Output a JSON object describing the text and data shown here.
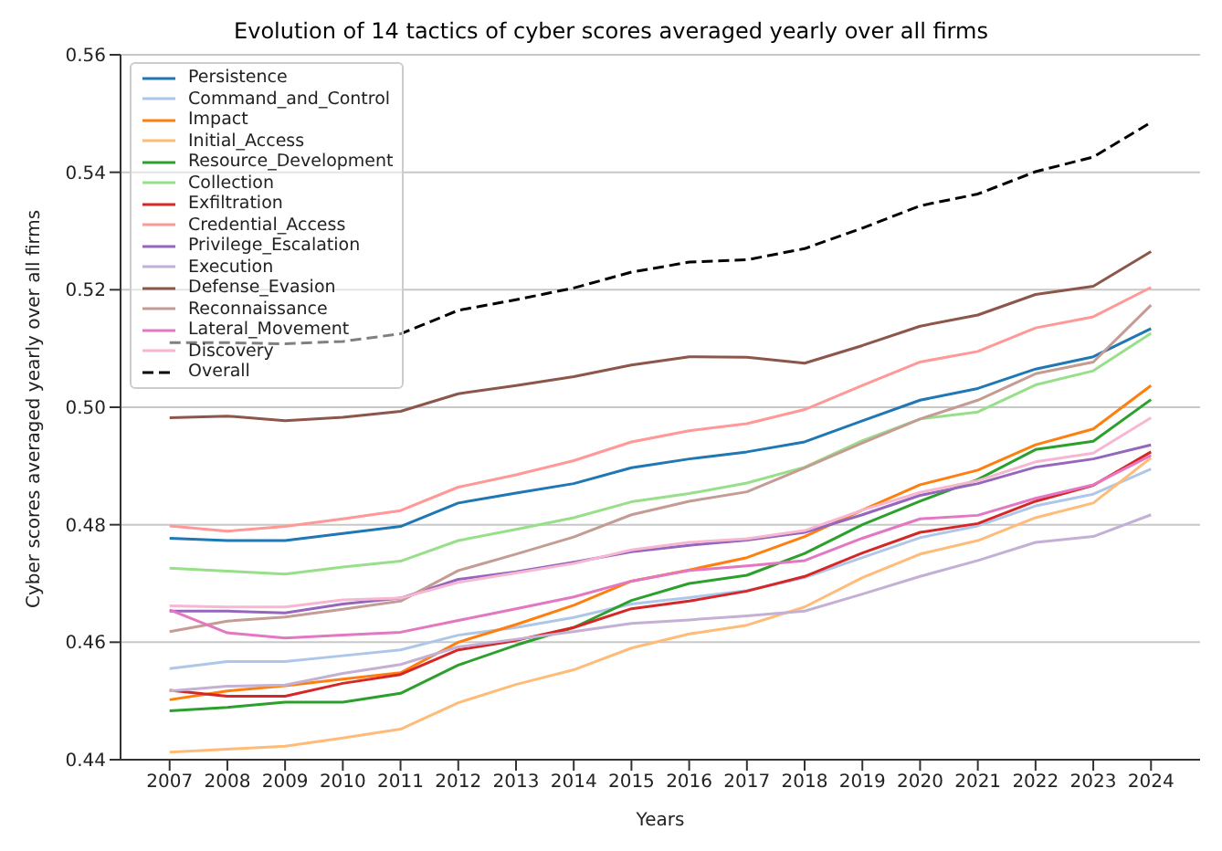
{
  "chart_data": {
    "type": "line",
    "title": "Evolution of 14 tactics of cyber scores averaged yearly over all firms",
    "xlabel": "Years",
    "ylabel": "Cyber scores averaged yearly over all firms",
    "x": [
      2007,
      2008,
      2009,
      2010,
      2011,
      2012,
      2013,
      2014,
      2015,
      2016,
      2017,
      2018,
      2019,
      2020,
      2021,
      2022,
      2023,
      2024
    ],
    "xlim": [
      2006.15,
      2024.85
    ],
    "xticks": [
      2007,
      2008,
      2009,
      2010,
      2011,
      2012,
      2013,
      2014,
      2015,
      2016,
      2017,
      2018,
      2019,
      2020,
      2021,
      2022,
      2023,
      2024
    ],
    "ylim": [
      0.44,
      0.56
    ],
    "yticks": [
      {
        "value": 0.44,
        "label": "0.44"
      },
      {
        "value": 0.46,
        "label": "0.46"
      },
      {
        "value": 0.48,
        "label": "0.48"
      },
      {
        "value": 0.5,
        "label": "0.50"
      },
      {
        "value": 0.52,
        "label": "0.52"
      },
      {
        "value": 0.54,
        "label": "0.54"
      },
      {
        "value": 0.56,
        "label": "0.56"
      }
    ],
    "grid": "y",
    "legend": "top left",
    "marker": "none",
    "series": [
      {
        "name": "Persistence",
        "color": "#1f77b4",
        "values": [
          0.4777,
          0.4773,
          0.4773,
          0.4785,
          0.4797,
          0.4837,
          0.4854,
          0.487,
          0.4897,
          0.4912,
          0.4924,
          0.4941,
          0.4977,
          0.5012,
          0.5032,
          0.5065,
          0.5086,
          0.5134
        ]
      },
      {
        "name": "Command_and_Control",
        "color": "#aec7e8",
        "values": [
          0.4555,
          0.4567,
          0.4567,
          0.4577,
          0.4587,
          0.4612,
          0.4625,
          0.4642,
          0.4665,
          0.4676,
          0.4688,
          0.471,
          0.4744,
          0.4778,
          0.4798,
          0.4832,
          0.4852,
          0.4895
        ]
      },
      {
        "name": "Impact",
        "color": "#ff7f0e",
        "values": [
          0.4502,
          0.4517,
          0.4526,
          0.4537,
          0.4548,
          0.46,
          0.463,
          0.4663,
          0.4704,
          0.4723,
          0.4744,
          0.478,
          0.4825,
          0.4868,
          0.4893,
          0.4936,
          0.4963,
          0.5037
        ]
      },
      {
        "name": "Initial_Access",
        "color": "#ffbb78",
        "values": [
          0.4413,
          0.4418,
          0.4423,
          0.4437,
          0.4452,
          0.4497,
          0.4528,
          0.4553,
          0.459,
          0.4614,
          0.4629,
          0.466,
          0.471,
          0.475,
          0.4773,
          0.4812,
          0.4837,
          0.4914
        ]
      },
      {
        "name": "Resource_Development",
        "color": "#2ca02c",
        "values": [
          0.4483,
          0.4489,
          0.4498,
          0.4498,
          0.4513,
          0.4561,
          0.4595,
          0.4625,
          0.4671,
          0.47,
          0.4714,
          0.4751,
          0.48,
          0.484,
          0.4877,
          0.4928,
          0.4942,
          0.5013
        ]
      },
      {
        "name": "Collection",
        "color": "#98df8a",
        "values": [
          0.4726,
          0.4721,
          0.4716,
          0.4728,
          0.4738,
          0.4773,
          0.4792,
          0.4812,
          0.4839,
          0.4853,
          0.4871,
          0.4898,
          0.4943,
          0.498,
          0.4992,
          0.5038,
          0.5062,
          0.5126
        ]
      },
      {
        "name": "Exfiltration",
        "color": "#d62728",
        "values": [
          0.4518,
          0.4508,
          0.4508,
          0.453,
          0.4545,
          0.4587,
          0.4603,
          0.4625,
          0.4657,
          0.467,
          0.4687,
          0.4712,
          0.4752,
          0.4787,
          0.4802,
          0.484,
          0.4867,
          0.4924
        ]
      },
      {
        "name": "Credential_Access",
        "color": "#ff9896",
        "values": [
          0.4798,
          0.4789,
          0.4797,
          0.481,
          0.4824,
          0.4864,
          0.4885,
          0.4909,
          0.4941,
          0.496,
          0.4972,
          0.4996,
          0.5037,
          0.5077,
          0.5095,
          0.5135,
          0.5154,
          0.5204
        ]
      },
      {
        "name": "Privilege_Escalation",
        "color": "#9467bd",
        "values": [
          0.4653,
          0.4653,
          0.465,
          0.4665,
          0.4675,
          0.4707,
          0.472,
          0.4736,
          0.4754,
          0.4765,
          0.4774,
          0.4787,
          0.4817,
          0.485,
          0.487,
          0.4898,
          0.4912,
          0.4936
        ]
      },
      {
        "name": "Execution",
        "color": "#c5b0d5",
        "values": [
          0.4517,
          0.4525,
          0.4527,
          0.4547,
          0.4562,
          0.4592,
          0.4605,
          0.4618,
          0.4632,
          0.4638,
          0.4645,
          0.4653,
          0.4682,
          0.4712,
          0.4739,
          0.477,
          0.478,
          0.4817
        ]
      },
      {
        "name": "Defense_Evasion",
        "color": "#8c564b",
        "values": [
          0.4982,
          0.4985,
          0.4977,
          0.4983,
          0.4993,
          0.5023,
          0.5037,
          0.5052,
          0.5072,
          0.5086,
          0.5085,
          0.5075,
          0.5105,
          0.5138,
          0.5157,
          0.5192,
          0.5206,
          0.5265
        ]
      },
      {
        "name": "Reconnaissance",
        "color": "#c49c94",
        "values": [
          0.4618,
          0.4636,
          0.4643,
          0.4656,
          0.467,
          0.4722,
          0.475,
          0.4779,
          0.4817,
          0.484,
          0.4856,
          0.4897,
          0.4939,
          0.498,
          0.5012,
          0.5057,
          0.5077,
          0.5174
        ]
      },
      {
        "name": "Lateral_Movement",
        "color": "#e377c2",
        "values": [
          0.4655,
          0.4616,
          0.4607,
          0.4612,
          0.4617,
          0.4637,
          0.4657,
          0.4677,
          0.4704,
          0.4722,
          0.473,
          0.4739,
          0.4777,
          0.481,
          0.4816,
          0.4845,
          0.4868,
          0.4918
        ]
      },
      {
        "name": "Discovery",
        "color": "#f7b6d2",
        "values": [
          0.4662,
          0.466,
          0.466,
          0.4672,
          0.4675,
          0.4702,
          0.4718,
          0.4734,
          0.4757,
          0.477,
          0.4776,
          0.479,
          0.4825,
          0.4855,
          0.4875,
          0.4907,
          0.4922,
          0.4982
        ]
      },
      {
        "name": "Overall",
        "color": "#000000",
        "line_style": "dashed",
        "values": [
          0.511,
          0.511,
          0.5108,
          0.5112,
          0.5125,
          0.5165,
          0.5183,
          0.5203,
          0.523,
          0.5247,
          0.5251,
          0.527,
          0.5305,
          0.5343,
          0.5363,
          0.5401,
          0.5426,
          0.5485
        ]
      }
    ]
  }
}
